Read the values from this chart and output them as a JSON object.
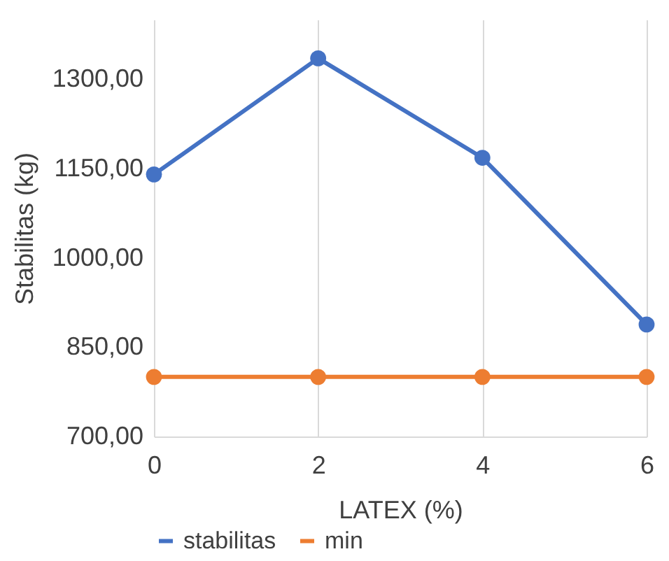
{
  "chart_data": {
    "type": "line",
    "xlabel": "LATEX (%)",
    "ylabel": "Stabilitas (kg)",
    "x": [
      0,
      2,
      4,
      6
    ],
    "series": [
      {
        "name": "stabilitas",
        "color": "#4472c4",
        "values": [
          1140,
          1335,
          1168,
          888
        ]
      },
      {
        "name": "min",
        "color": "#ed7d31",
        "values": [
          800,
          800,
          800,
          800
        ]
      }
    ],
    "xlim": [
      0,
      6
    ],
    "xticks": [
      0,
      2,
      4,
      6
    ],
    "ylim": [
      700,
      1400
    ],
    "yticks": [
      {
        "value": 700,
        "label": "700,00"
      },
      {
        "value": 850,
        "label": "850,00"
      },
      {
        "value": 1000,
        "label": "1000,00"
      },
      {
        "value": 1150,
        "label": "1150,00"
      },
      {
        "value": 1300,
        "label": "1300,00"
      }
    ],
    "grid": "x",
    "legend": "bottom",
    "marker": "circle",
    "line_style": "solid"
  }
}
